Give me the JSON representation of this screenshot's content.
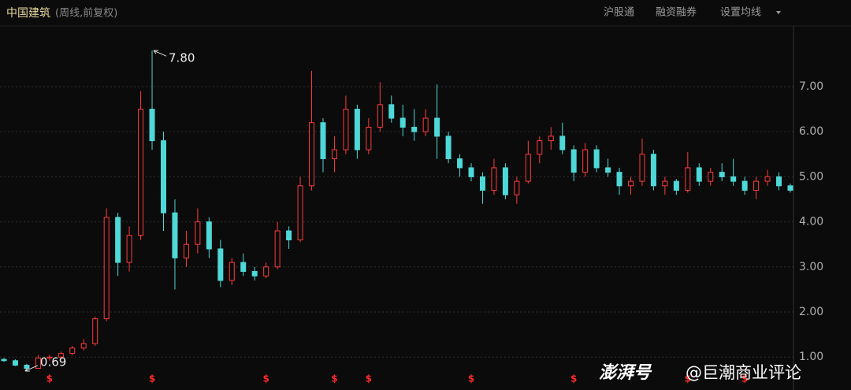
{
  "chart_data": {
    "type": "candlestick",
    "title": "中国建筑",
    "subtitle": "(周线,前复权)",
    "toolbar": [
      "沪股通",
      "融资融券",
      "设置均线"
    ],
    "watermark": [
      "澎湃号",
      "@巨潮商业评论"
    ],
    "high_label": "7.80",
    "low_label": "0.69",
    "dividend_marker": "$",
    "dividends_at": [
      4,
      13,
      23,
      29,
      32,
      41,
      50,
      60,
      65
    ],
    "up_color": "#ff3b3b",
    "down_color": "#4fd8d8",
    "grid": true,
    "ylim": [
      0.27,
      8.31
    ],
    "yticks": [
      {
        "value": 1,
        "label": "1.00"
      },
      {
        "value": 2,
        "label": "2.00"
      },
      {
        "value": 3,
        "label": "3.00"
      },
      {
        "value": 4,
        "label": "4.00"
      },
      {
        "value": 5,
        "label": "5.00"
      },
      {
        "value": 6,
        "label": "6.00"
      },
      {
        "value": 7,
        "label": "7.00"
      }
    ],
    "open": [
      0.95,
      0.92,
      0.82,
      0.75,
      0.98,
      1.0,
      1.08,
      1.2,
      1.3,
      1.85,
      4.1,
      3.1,
      3.7,
      6.5,
      5.8,
      4.2,
      3.2,
      3.5,
      4.0,
      3.4,
      2.7,
      3.1,
      2.9,
      2.8,
      3.0,
      3.8,
      3.6,
      4.8,
      6.2,
      5.4,
      5.6,
      6.5,
      5.6,
      6.1,
      6.6,
      6.3,
      6.1,
      6.0,
      6.3,
      5.9,
      5.4,
      5.2,
      5.0,
      4.7,
      5.2,
      4.6,
      4.9,
      5.5,
      5.8,
      5.9,
      5.6,
      5.1,
      5.6,
      5.2,
      5.1,
      4.8,
      4.9,
      5.5,
      4.8,
      4.9,
      4.7,
      5.2,
      4.9,
      5.1,
      5.0,
      4.9,
      4.7,
      4.9,
      5.0,
      4.8
    ],
    "high": [
      0.98,
      0.95,
      0.85,
      1.05,
      1.05,
      1.12,
      1.25,
      1.4,
      1.9,
      4.3,
      4.2,
      3.9,
      6.9,
      7.8,
      6.0,
      4.5,
      3.8,
      4.3,
      4.1,
      3.6,
      3.2,
      3.3,
      3.0,
      3.1,
      4.0,
      3.9,
      5.0,
      7.35,
      6.3,
      5.9,
      6.8,
      6.6,
      6.3,
      7.1,
      6.8,
      6.6,
      6.5,
      6.5,
      7.05,
      6.0,
      5.5,
      5.3,
      5.1,
      5.4,
      5.3,
      5.0,
      5.8,
      5.9,
      6.1,
      6.2,
      5.7,
      5.75,
      5.7,
      5.4,
      5.2,
      5.0,
      5.85,
      5.6,
      5.0,
      4.95,
      5.55,
      5.3,
      5.2,
      5.3,
      5.4,
      5.0,
      5.0,
      5.15,
      5.1,
      4.85
    ],
    "low": [
      0.9,
      0.8,
      0.69,
      0.74,
      0.92,
      0.98,
      1.05,
      1.15,
      1.25,
      1.8,
      2.8,
      2.9,
      3.6,
      5.6,
      3.8,
      2.5,
      3.0,
      3.3,
      3.2,
      2.55,
      2.6,
      2.8,
      2.7,
      2.75,
      2.95,
      3.4,
      3.55,
      4.7,
      5.1,
      5.1,
      5.5,
      5.4,
      5.5,
      6.0,
      6.2,
      5.9,
      5.8,
      5.9,
      5.4,
      5.3,
      5.0,
      4.9,
      4.4,
      4.6,
      4.5,
      4.4,
      4.85,
      5.3,
      5.6,
      5.5,
      4.9,
      5.0,
      5.1,
      5.0,
      4.6,
      4.6,
      4.8,
      4.7,
      4.6,
      4.6,
      4.65,
      4.8,
      4.8,
      4.9,
      4.8,
      4.6,
      4.5,
      4.8,
      4.7,
      4.65
    ],
    "close": [
      0.92,
      0.82,
      0.75,
      0.98,
      1.0,
      1.08,
      1.2,
      1.3,
      1.85,
      4.1,
      3.1,
      3.7,
      6.5,
      5.8,
      4.2,
      3.2,
      3.5,
      4.0,
      3.4,
      2.7,
      3.1,
      2.9,
      2.8,
      3.0,
      3.8,
      3.6,
      4.8,
      6.2,
      5.4,
      5.6,
      6.5,
      5.6,
      6.1,
      6.6,
      6.3,
      6.1,
      6.0,
      6.3,
      5.9,
      5.4,
      5.2,
      5.0,
      4.7,
      5.2,
      4.6,
      4.9,
      5.5,
      5.8,
      5.9,
      5.6,
      5.1,
      5.6,
      5.2,
      5.1,
      4.8,
      4.9,
      5.5,
      4.8,
      4.9,
      4.7,
      5.2,
      4.9,
      5.1,
      5.0,
      4.9,
      4.7,
      4.9,
      5.0,
      4.8,
      4.7
    ]
  }
}
